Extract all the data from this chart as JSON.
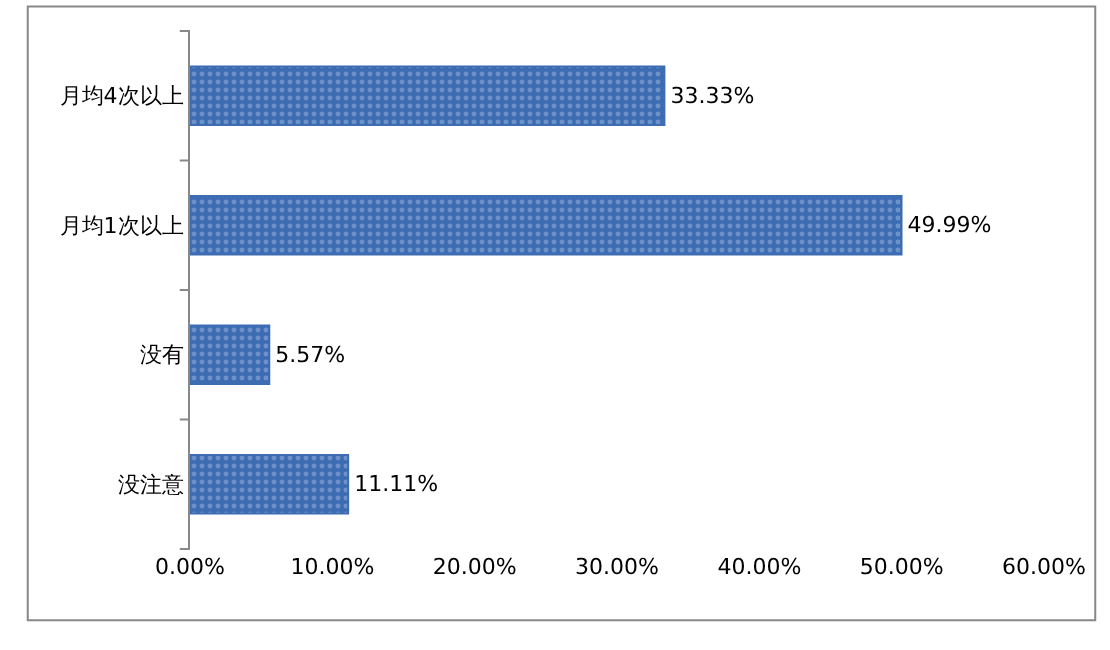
{
  "chart_data": {
    "type": "bar",
    "orientation": "horizontal",
    "categories": [
      "月均4次以上",
      "月均1次以上",
      "没有",
      "没注意"
    ],
    "values": [
      33.33,
      49.99,
      5.57,
      11.11
    ],
    "value_labels": [
      "33.33%",
      "49.99%",
      "5.57%",
      "11.11%"
    ],
    "color": "#3d6cb3",
    "xlim": [
      0,
      60
    ],
    "xticks": [
      {
        "value": 0,
        "label": "0.00%"
      },
      {
        "value": 10,
        "label": "10.00%"
      },
      {
        "value": 20,
        "label": "20.00%"
      },
      {
        "value": 30,
        "label": "30.00%"
      },
      {
        "value": 40,
        "label": "40.00%"
      },
      {
        "value": 50,
        "label": "50.00%"
      },
      {
        "value": 60,
        "label": "60.00%"
      }
    ],
    "tick_labels": "xy"
  }
}
